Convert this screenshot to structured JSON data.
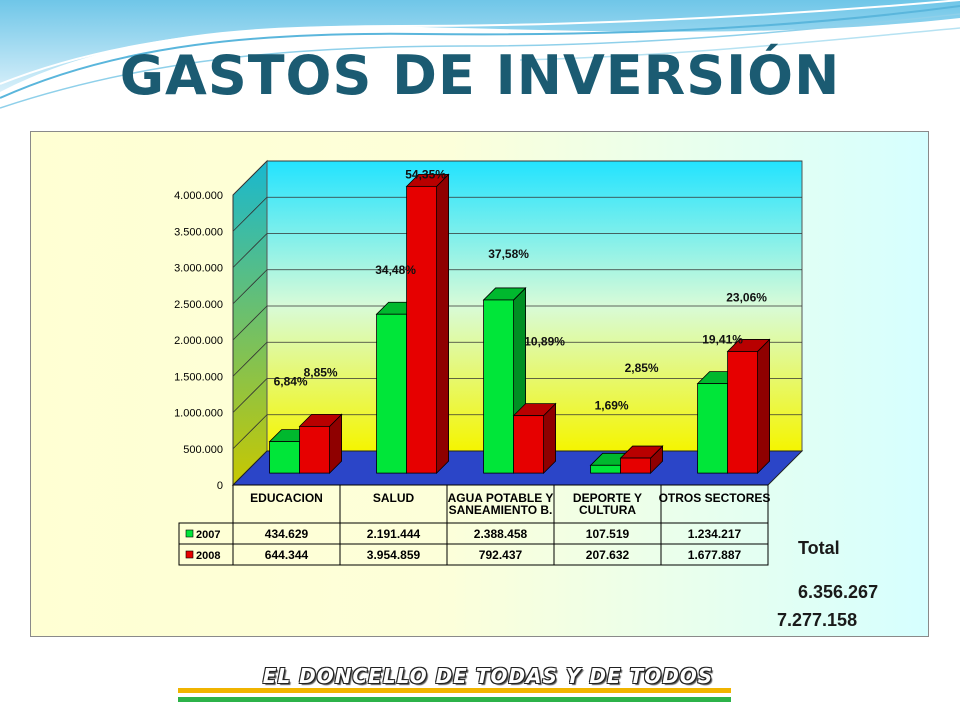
{
  "title": "GASTOS DE INVERSIÓN",
  "footer": "EL DONCELLO DE TODAS Y DE TODOS",
  "colors": {
    "title": "#1b5b72",
    "series_2007": "#00e639",
    "series_2008": "#e60000",
    "floor": "#2b45c8",
    "wall_top": "#22e3ff",
    "wall_bottom": "#f5f500"
  },
  "chart_data": {
    "type": "bar",
    "categories": [
      "EDUCACION",
      "SALUD",
      "AGUA POTABLE Y SANEAMIENTO B.",
      "DEPORTE Y CULTURA",
      "OTROS SECTORES"
    ],
    "series": [
      {
        "name": "2007",
        "values": [
          434629,
          2191444,
          2388458,
          107519,
          1234217
        ],
        "labels": [
          "434.629",
          "2.191.444",
          "2.388.458",
          "107.519",
          "1.234.217"
        ]
      },
      {
        "name": "2008",
        "values": [
          644344,
          3954859,
          792437,
          207632,
          1677887
        ],
        "labels": [
          "644.344",
          "3.954.859",
          "792.437",
          "207.632",
          "1.677.887"
        ]
      }
    ],
    "ylim": [
      0,
      4000000
    ],
    "yticks": [
      "0",
      "500.000",
      "1.000.000",
      "1.500.000",
      "2.000.000",
      "2.500.000",
      "3.000.000",
      "3.500.000",
      "4.000.000"
    ],
    "grid": true,
    "percent_labels": [
      {
        "category": "EDUCACION",
        "series": "2007",
        "text": "6,84%"
      },
      {
        "category": "EDUCACION",
        "series": "2008",
        "text": "8,85%"
      },
      {
        "category": "SALUD",
        "series": "2007",
        "text": "34,48%"
      },
      {
        "category": "SALUD",
        "series": "2008",
        "text": "54,35%"
      },
      {
        "category": "AGUA POTABLE Y SANEAMIENTO B.",
        "series": "2007",
        "text": "37,58%"
      },
      {
        "category": "AGUA POTABLE Y SANEAMIENTO B.",
        "series": "2008",
        "text": "10,89%"
      },
      {
        "category": "DEPORTE Y CULTURA",
        "series": "2007",
        "text": "1,69%"
      },
      {
        "category": "DEPORTE Y CULTURA",
        "series": "2008",
        "text": "2,85%"
      },
      {
        "category": "OTROS SECTORES",
        "series": "2007",
        "text": "19,41%"
      },
      {
        "category": "OTROS SECTORES",
        "series": "2008",
        "text": "23,06%"
      }
    ],
    "totals": {
      "label": "Total",
      "values": [
        "6.356.267",
        "7.277.158"
      ]
    }
  }
}
